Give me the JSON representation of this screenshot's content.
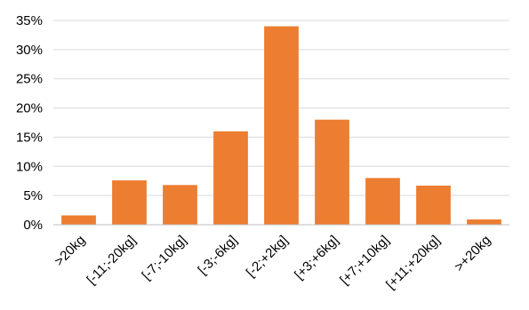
{
  "chart_data": {
    "type": "bar",
    "title": "",
    "xlabel": "",
    "ylabel": "",
    "categories": [
      ">20kg",
      "[-11;-20kg]",
      "[-7;-10kg]",
      "[-3;-6kg]",
      "[-2;+2kg]",
      "[+3;+6kg]",
      "[+7;+10kg]",
      "[+11;+20kg]",
      ">+20kg"
    ],
    "values": [
      1.6,
      7.6,
      6.8,
      16.0,
      34.0,
      18.0,
      8.0,
      6.7,
      0.9
    ],
    "ylim": [
      0,
      35
    ],
    "yticks": [
      0,
      5,
      10,
      15,
      20,
      25,
      30,
      35
    ],
    "ytick_labels": [
      "0%",
      "5%",
      "10%",
      "15%",
      "20%",
      "25%",
      "30%",
      "35%"
    ],
    "grid": true,
    "legend": "none",
    "bar_color": "#ED7D31"
  }
}
